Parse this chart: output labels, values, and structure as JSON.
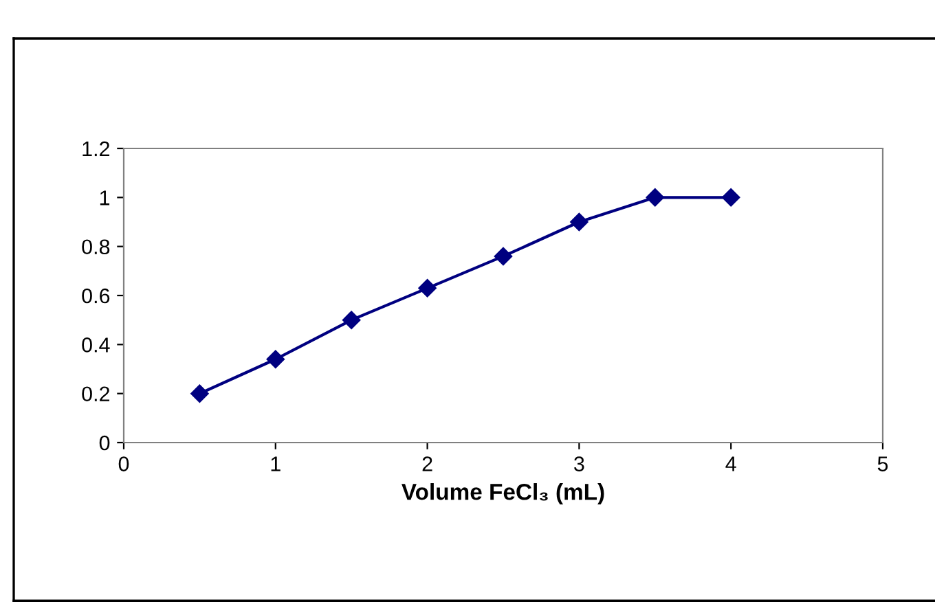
{
  "chart_data": {
    "type": "line",
    "xlabel": "Volume FeCl₃ (mL)",
    "x": [
      0.5,
      1,
      1.5,
      2,
      2.5,
      3,
      3.5,
      4
    ],
    "series": [
      {
        "color": "#000080",
        "values": [
          0.2,
          0.34,
          0.5,
          0.63,
          0.76,
          0.9,
          1.0,
          1.0
        ]
      }
    ],
    "xlim": [
      0,
      5
    ],
    "xticks": [
      0,
      1,
      2,
      3,
      4,
      5
    ],
    "ylim": [
      0,
      1.2
    ],
    "yticks": [
      0,
      0.2,
      0.4,
      0.6,
      0.8,
      1,
      1.2
    ],
    "marker": "diamond",
    "line_style": "solid",
    "grid": false,
    "legend": false
  }
}
